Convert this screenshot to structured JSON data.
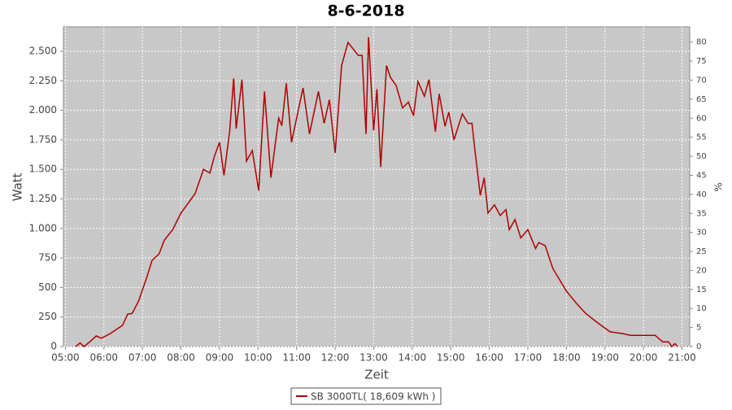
{
  "chart_data": {
    "type": "line",
    "title": "8-6-2018",
    "x_label": "Zeit",
    "y_label": "Watt",
    "y2_label": "%",
    "x": [
      "05:16",
      "05:23",
      "05:29",
      "05:38",
      "05:48",
      "05:56",
      "06:10",
      "06:29",
      "06:37",
      "06:44",
      "06:54",
      "07:07",
      "07:15",
      "07:26",
      "07:34",
      "07:47",
      "08:00",
      "08:22",
      "08:35",
      "08:45",
      "08:52",
      "09:00",
      "09:07",
      "09:16",
      "09:22",
      "09:26",
      "09:35",
      "09:42",
      "09:51",
      "10:01",
      "10:10",
      "10:20",
      "10:32",
      "10:37",
      "10:44",
      "10:52",
      "11:10",
      "11:20",
      "11:34",
      "11:43",
      "11:51",
      "12:00",
      "12:10",
      "12:20",
      "12:36",
      "12:42",
      "12:48",
      "12:52",
      "13:00",
      "13:05",
      "13:11",
      "13:20",
      "13:26",
      "13:35",
      "13:45",
      "13:54",
      "14:02",
      "14:09",
      "14:19",
      "14:26",
      "14:36",
      "14:42",
      "14:51",
      "14:57",
      "15:05",
      "15:18",
      "15:27",
      "15:33",
      "15:37",
      "15:46",
      "15:52",
      "15:58",
      "16:08",
      "16:17",
      "16:26",
      "16:31",
      "16:40",
      "16:49",
      "17:00",
      "17:12",
      "17:17",
      "17:27",
      "17:39",
      "18:00",
      "18:15",
      "18:30",
      "18:49",
      "19:08",
      "19:27",
      "19:40",
      "20:18",
      "20:30",
      "20:39",
      "20:44",
      "20:49",
      "20:53"
    ],
    "series": [
      {
        "name": "SB 3000TL( 18,609 kWh )",
        "color": "#b00000",
        "values": [
          0,
          30,
          0,
          40,
          90,
          70,
          110,
          180,
          275,
          280,
          385,
          590,
          730,
          785,
          900,
          990,
          1130,
          1295,
          1500,
          1470,
          1610,
          1730,
          1450,
          1830,
          2270,
          1845,
          2260,
          1570,
          1660,
          1320,
          2160,
          1430,
          1935,
          1870,
          2230,
          1730,
          2190,
          1800,
          2160,
          1890,
          2090,
          1640,
          2380,
          2575,
          2465,
          2465,
          1800,
          2620,
          1830,
          2180,
          1520,
          2380,
          2280,
          2210,
          2020,
          2070,
          1955,
          2245,
          2120,
          2260,
          1820,
          2140,
          1865,
          1985,
          1750,
          1970,
          1890,
          1890,
          1695,
          1280,
          1430,
          1130,
          1200,
          1110,
          1160,
          990,
          1075,
          920,
          990,
          830,
          880,
          855,
          660,
          470,
          370,
          280,
          200,
          125,
          110,
          95,
          95,
          40,
          40,
          0,
          25,
          0
        ]
      }
    ],
    "xlim": [
      "04:57",
      "21:12"
    ],
    "xticks": [
      "05:00",
      "06:00",
      "07:00",
      "08:00",
      "09:00",
      "10:00",
      "11:00",
      "12:00",
      "13:00",
      "14:00",
      "15:00",
      "16:00",
      "17:00",
      "18:00",
      "19:00",
      "20:00",
      "21:00"
    ],
    "ylim": [
      0,
      2707
    ],
    "yticks": [
      0,
      250,
      500,
      750,
      {
        "value": 1000,
        "label": "1.000"
      },
      {
        "value": 1250,
        "label": "1.250"
      },
      {
        "value": 1500,
        "label": "1.500"
      },
      {
        "value": 1750,
        "label": "1.750"
      },
      {
        "value": 2000,
        "label": "2.000"
      },
      {
        "value": 2250,
        "label": "2.250"
      },
      {
        "value": 2500,
        "label": "2.500"
      }
    ],
    "y2lim": [
      0,
      84
    ],
    "y2ticks": [
      0,
      5,
      10,
      15,
      20,
      25,
      30,
      35,
      40,
      45,
      50,
      55,
      60,
      65,
      70,
      75,
      80
    ],
    "grid": true
  }
}
